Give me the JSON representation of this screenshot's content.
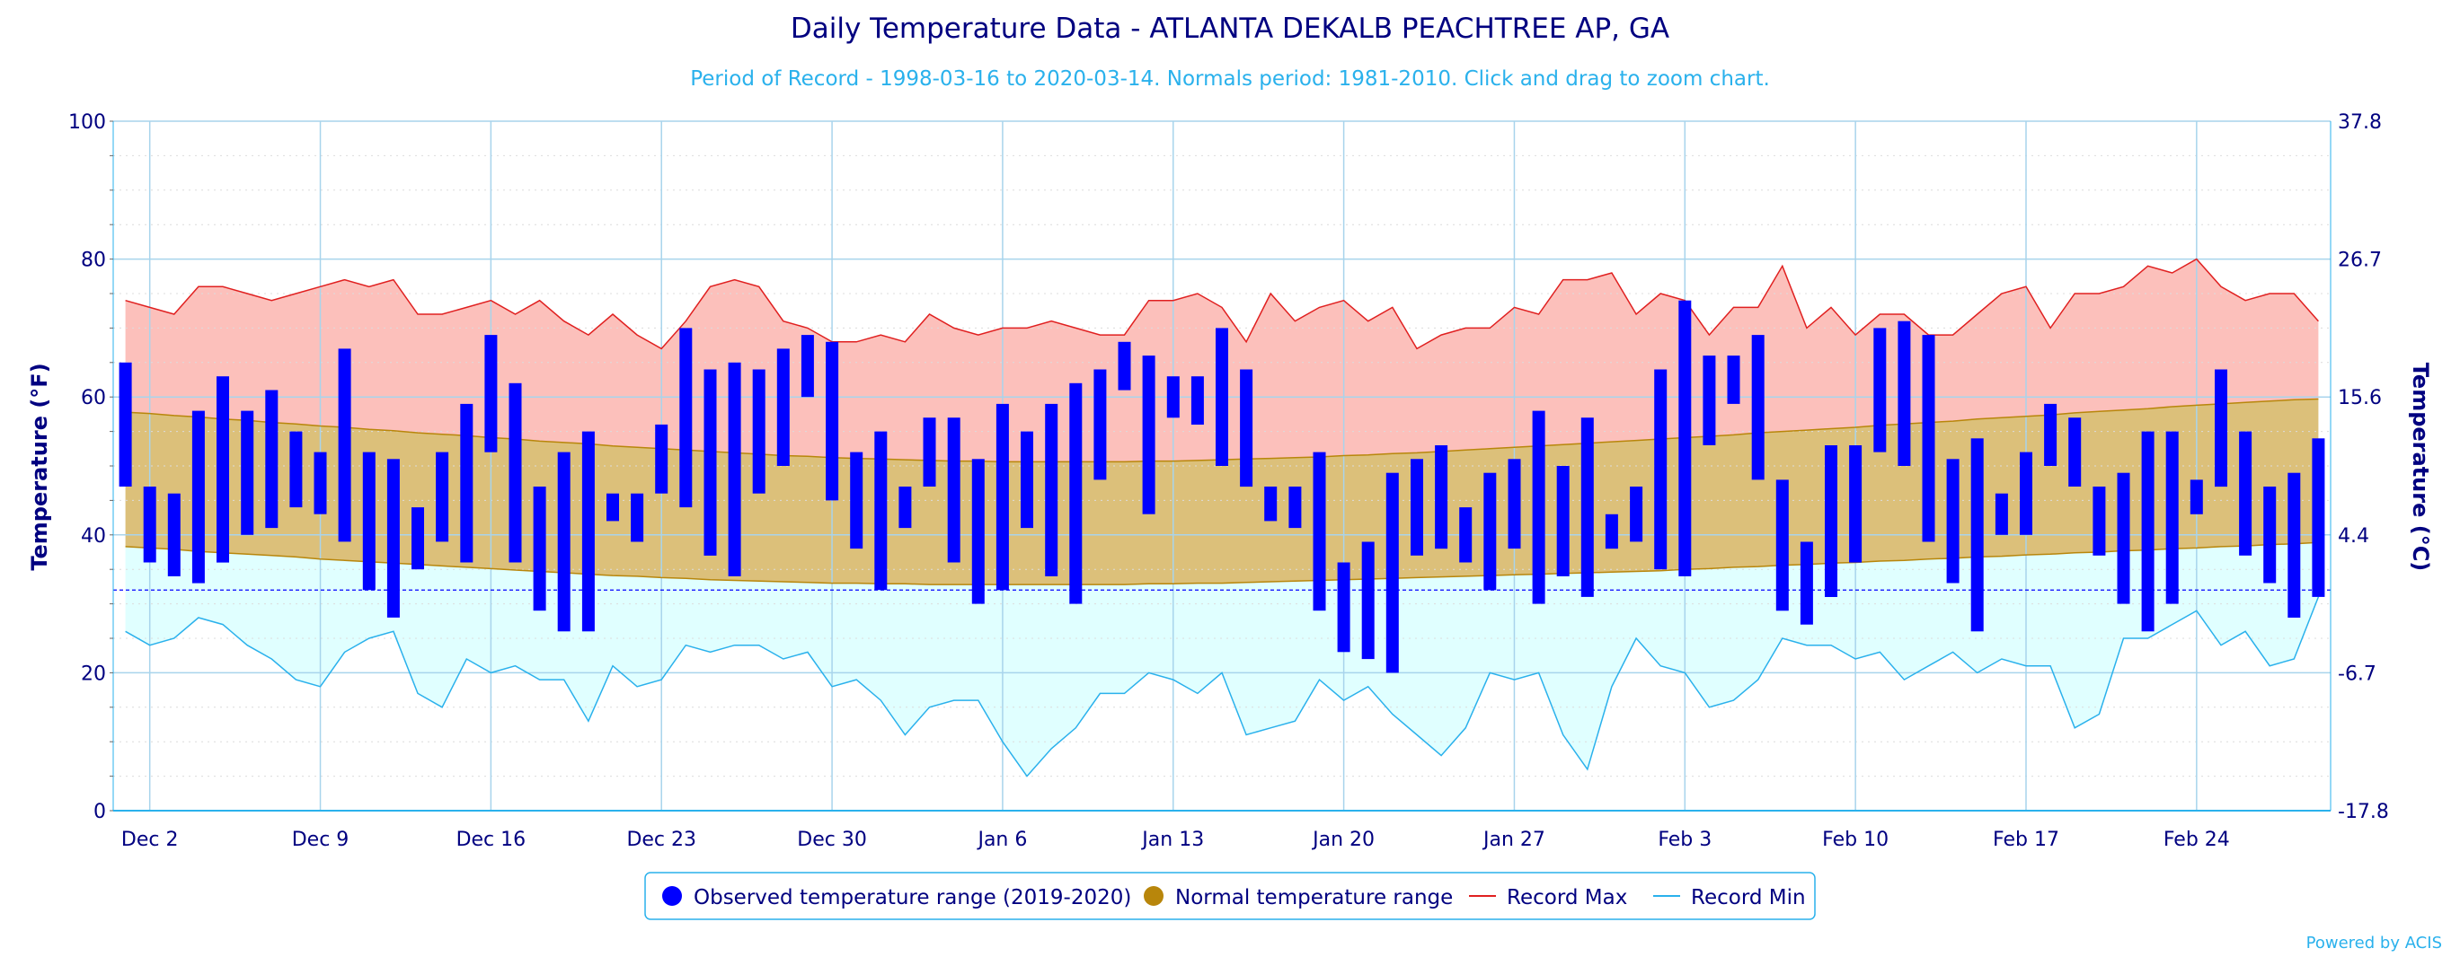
{
  "chart_data": {
    "type": "bar",
    "title": "Daily Temperature Data - ATLANTA DEKALB PEACHTREE AP, GA",
    "subtitle": "Period of Record - 1998-03-16 to 2020-03-14. Normals period: 1981-2010. Click and drag to zoom chart.",
    "ylabel": "Temperature (°F)",
    "ylabel_right": "Temperature (°C)",
    "ylim": [
      0,
      100
    ],
    "yticks": [
      0,
      20,
      40,
      60,
      80,
      100
    ],
    "yticks_right": [
      "-17.8",
      "-6.7",
      "4.4",
      "15.6",
      "26.7",
      "37.8"
    ],
    "freezing_line": 32,
    "x": [
      "2019-12-01",
      "2019-12-02",
      "2019-12-03",
      "2019-12-04",
      "2019-12-05",
      "2019-12-06",
      "2019-12-07",
      "2019-12-08",
      "2019-12-09",
      "2019-12-10",
      "2019-12-11",
      "2019-12-12",
      "2019-12-13",
      "2019-12-14",
      "2019-12-15",
      "2019-12-16",
      "2019-12-17",
      "2019-12-18",
      "2019-12-19",
      "2019-12-20",
      "2019-12-21",
      "2019-12-22",
      "2019-12-23",
      "2019-12-24",
      "2019-12-25",
      "2019-12-26",
      "2019-12-27",
      "2019-12-28",
      "2019-12-29",
      "2019-12-30",
      "2019-12-31",
      "2020-01-01",
      "2020-01-02",
      "2020-01-03",
      "2020-01-04",
      "2020-01-05",
      "2020-01-06",
      "2020-01-07",
      "2020-01-08",
      "2020-01-09",
      "2020-01-10",
      "2020-01-11",
      "2020-01-12",
      "2020-01-13",
      "2020-01-14",
      "2020-01-15",
      "2020-01-16",
      "2020-01-17",
      "2020-01-18",
      "2020-01-19",
      "2020-01-20",
      "2020-01-21",
      "2020-01-22",
      "2020-01-23",
      "2020-01-24",
      "2020-01-25",
      "2020-01-26",
      "2020-01-27",
      "2020-01-28",
      "2020-01-29",
      "2020-01-30",
      "2020-01-31",
      "2020-02-01",
      "2020-02-02",
      "2020-02-03",
      "2020-02-04",
      "2020-02-05",
      "2020-02-06",
      "2020-02-07",
      "2020-02-08",
      "2020-02-09",
      "2020-02-10",
      "2020-02-11",
      "2020-02-12",
      "2020-02-13",
      "2020-02-14",
      "2020-02-15",
      "2020-02-16",
      "2020-02-17",
      "2020-02-18",
      "2020-02-19",
      "2020-02-20",
      "2020-02-21",
      "2020-02-22",
      "2020-02-23",
      "2020-02-24",
      "2020-02-25",
      "2020-02-26",
      "2020-02-27",
      "2020-02-28",
      "2020-02-29"
    ],
    "xtick_labels": [
      "Dec 2",
      "Dec 9",
      "Dec 16",
      "Dec 23",
      "Dec 30",
      "Jan 6",
      "Jan 13",
      "Jan 20",
      "Jan 27",
      "Feb 3",
      "Feb 10",
      "Feb 17",
      "Feb 24"
    ],
    "xtick_indices": [
      1,
      8,
      15,
      22,
      29,
      36,
      43,
      50,
      57,
      64,
      71,
      78,
      85
    ],
    "series": [
      {
        "name": "Observed temperature range (2019-2020)",
        "color": "#0000ff",
        "low": [
          47,
          36,
          34,
          33,
          36,
          40,
          41,
          44,
          43,
          39,
          32,
          28,
          35,
          39,
          36,
          52,
          36,
          29,
          26,
          26,
          42,
          39,
          46,
          44,
          37,
          34,
          46,
          50,
          60,
          45,
          38,
          32,
          41,
          47,
          36,
          30,
          32,
          41,
          34,
          30,
          48,
          61,
          43,
          57,
          56,
          50,
          47,
          42,
          41,
          29,
          23,
          22,
          20,
          37,
          38,
          36,
          32,
          38,
          30,
          34,
          31,
          38,
          39,
          35,
          34,
          53,
          59,
          48,
          29,
          27,
          31,
          36,
          52,
          50,
          39,
          33,
          26,
          40,
          40,
          50,
          47,
          37,
          30,
          26,
          30,
          43,
          47,
          37,
          33,
          28,
          31
        ],
        "high": [
          65,
          47,
          46,
          58,
          63,
          58,
          61,
          55,
          52,
          67,
          52,
          51,
          44,
          52,
          59,
          69,
          62,
          47,
          52,
          55,
          46,
          46,
          56,
          70,
          64,
          65,
          64,
          67,
          69,
          68,
          52,
          55,
          47,
          57,
          57,
          51,
          59,
          55,
          59,
          62,
          64,
          68,
          66,
          63,
          63,
          70,
          64,
          47,
          47,
          52,
          36,
          39,
          49,
          51,
          53,
          44,
          49,
          51,
          58,
          50,
          57,
          43,
          47,
          64,
          74,
          66,
          66,
          69,
          48,
          39,
          53,
          53,
          70,
          71,
          69,
          51,
          54,
          46,
          52,
          59,
          57,
          47,
          49,
          55,
          55,
          48,
          64,
          55,
          47,
          49,
          54
        ]
      },
      {
        "name": "Normal temperature range",
        "color": "#b8860b",
        "low": [
          38.3,
          38.1,
          37.9,
          37.6,
          37.4,
          37.2,
          37.0,
          36.8,
          36.5,
          36.3,
          36.1,
          35.9,
          35.7,
          35.5,
          35.3,
          35.1,
          34.9,
          34.7,
          34.5,
          34.3,
          34.1,
          34.0,
          33.8,
          33.7,
          33.5,
          33.4,
          33.3,
          33.2,
          33.1,
          33.0,
          33.0,
          32.9,
          32.9,
          32.8,
          32.8,
          32.8,
          32.8,
          32.8,
          32.8,
          32.8,
          32.8,
          32.8,
          32.9,
          32.9,
          33.0,
          33.0,
          33.1,
          33.2,
          33.3,
          33.4,
          33.5,
          33.6,
          33.7,
          33.8,
          33.9,
          34.0,
          34.1,
          34.2,
          34.3,
          34.4,
          34.5,
          34.6,
          34.7,
          34.8,
          35.0,
          35.1,
          35.3,
          35.4,
          35.6,
          35.7,
          35.9,
          36.0,
          36.2,
          36.3,
          36.5,
          36.6,
          36.8,
          36.9,
          37.1,
          37.2,
          37.4,
          37.5,
          37.7,
          37.8,
          38.0,
          38.1,
          38.3,
          38.4,
          38.6,
          38.7,
          38.9
        ],
        "high": [
          57.8,
          57.6,
          57.3,
          57.1,
          56.8,
          56.6,
          56.3,
          56.1,
          55.8,
          55.6,
          55.3,
          55.1,
          54.8,
          54.6,
          54.4,
          54.1,
          53.9,
          53.6,
          53.4,
          53.2,
          52.9,
          52.7,
          52.5,
          52.3,
          52.1,
          51.9,
          51.7,
          51.5,
          51.4,
          51.2,
          51.1,
          51.0,
          50.9,
          50.8,
          50.7,
          50.7,
          50.6,
          50.6,
          50.6,
          50.6,
          50.6,
          50.6,
          50.7,
          50.7,
          50.8,
          50.9,
          51.0,
          51.1,
          51.2,
          51.3,
          51.5,
          51.6,
          51.8,
          51.9,
          52.1,
          52.3,
          52.5,
          52.7,
          52.9,
          53.1,
          53.3,
          53.5,
          53.7,
          53.9,
          54.1,
          54.3,
          54.5,
          54.8,
          55.0,
          55.2,
          55.4,
          55.6,
          55.9,
          56.1,
          56.3,
          56.5,
          56.8,
          57.0,
          57.2,
          57.4,
          57.7,
          57.9,
          58.1,
          58.3,
          58.6,
          58.8,
          59.0,
          59.2,
          59.4,
          59.6,
          59.7
        ]
      },
      {
        "name": "Record Max",
        "color": "#e02020",
        "fill": "#fcc0bb",
        "values": [
          74,
          73,
          72,
          76,
          76,
          75,
          74,
          75,
          76,
          77,
          76,
          77,
          72,
          72,
          73,
          74,
          72,
          74,
          71,
          69,
          72,
          69,
          67,
          71,
          76,
          77,
          76,
          71,
          70,
          68,
          68,
          69,
          68,
          72,
          70,
          69,
          70,
          70,
          71,
          70,
          69,
          69,
          74,
          74,
          75,
          73,
          68,
          75,
          71,
          73,
          74,
          71,
          73,
          67,
          69,
          70,
          70,
          73,
          72,
          77,
          77,
          78,
          72,
          75,
          74,
          69,
          73,
          73,
          79,
          70,
          73,
          69,
          72,
          72,
          69,
          69,
          72,
          75,
          76,
          70,
          75,
          75,
          76,
          79,
          78,
          80,
          76,
          74,
          75,
          75,
          71
        ]
      },
      {
        "name": "Record Min",
        "color": "#2ab1ec",
        "fill": "#e0ffff",
        "values": [
          26,
          24,
          25,
          28,
          27,
          24,
          22,
          19,
          18,
          23,
          25,
          26,
          17,
          15,
          22,
          20,
          21,
          19,
          19,
          13,
          21,
          18,
          19,
          24,
          23,
          24,
          24,
          22,
          23,
          18,
          19,
          16,
          11,
          15,
          16,
          16,
          10,
          5,
          9,
          12,
          17,
          17,
          20,
          19,
          17,
          20,
          11,
          12,
          13,
          19,
          16,
          18,
          14,
          11,
          8,
          12,
          20,
          19,
          20,
          11,
          6,
          18,
          25,
          21,
          20,
          15,
          16,
          19,
          25,
          24,
          24,
          22,
          23,
          19,
          21,
          23,
          20,
          22,
          21,
          21,
          12,
          14,
          25,
          25,
          27,
          29,
          24,
          26,
          21,
          22,
          31
        ]
      }
    ],
    "legend": {
      "placement": "bottom-center",
      "items": [
        "Observed temperature range (2019-2020)",
        "Normal temperature range",
        "Record Max",
        "Record Min"
      ]
    },
    "grid": true
  },
  "credits": "Powered by ACIS"
}
